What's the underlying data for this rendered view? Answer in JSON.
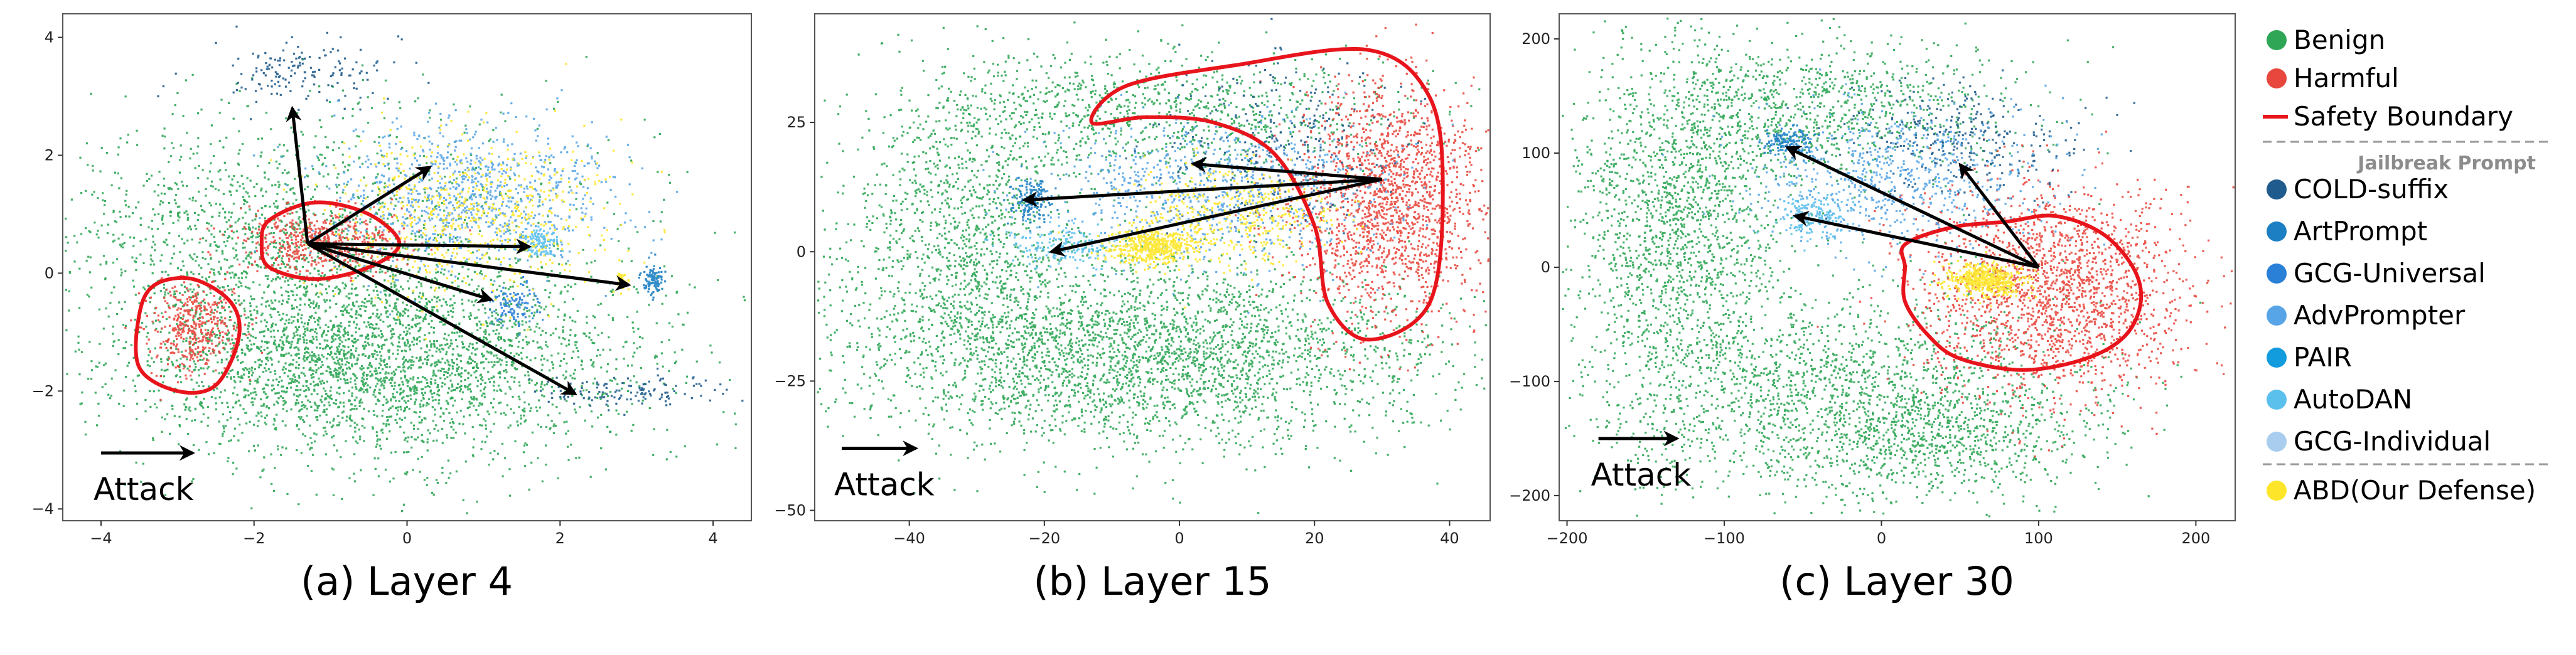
{
  "colors": {
    "benign": "#2ea655",
    "harmful": "#e8473d",
    "boundary": "#e8141c",
    "cold_suffix": "#1f5b8c",
    "artprompt": "#1c7fc4",
    "gcg_universal": "#2a7fd6",
    "advprompter": "#57a5e6",
    "pair": "#139cdd",
    "autodan": "#5bc0ec",
    "gcg_individual": "#a9cdee",
    "abd": "#fde629",
    "arrow": "#000000"
  },
  "legend": {
    "items": [
      {
        "label": "Benign",
        "color": "#2ea655",
        "kind": "dot"
      },
      {
        "label": "Harmful",
        "color": "#e8473d",
        "kind": "dot"
      },
      {
        "label": "Safety Boundary",
        "color": "#e8141c",
        "kind": "line"
      }
    ],
    "group_title": "Jailbreak Prompt",
    "jailbreak_items": [
      {
        "label": "COLD-suffix",
        "color": "#1f5b8c"
      },
      {
        "label": "ArtPrompt",
        "color": "#1c7fc4"
      },
      {
        "label": "GCG-Universal",
        "color": "#2a7fd6"
      },
      {
        "label": "AdvPrompter",
        "color": "#57a5e6"
      },
      {
        "label": "PAIR",
        "color": "#139cdd"
      },
      {
        "label": "AutoDAN",
        "color": "#5bc0ec"
      },
      {
        "label": "GCG-Individual",
        "color": "#a9cdee"
      }
    ],
    "defense_item": {
      "label": "ABD(Our Defense)",
      "color": "#fde629"
    }
  },
  "chart_data": [
    {
      "type": "scatter",
      "caption": "(a) Layer 4",
      "attack_label": "Attack",
      "xlim": [
        -4.5,
        4.5
      ],
      "ylim": [
        -4.2,
        4.4
      ],
      "xticks": [
        -4,
        -2,
        0,
        2,
        4
      ],
      "yticks": [
        -4,
        -2,
        0,
        2,
        4
      ],
      "clusters": [
        {
          "name": "Benign",
          "color": "#2ea655",
          "n": 2600,
          "cx": -0.5,
          "cy": -1.5,
          "sx": 1.6,
          "sy": 0.75
        },
        {
          "name": "Benign",
          "color": "#2ea655",
          "n": 1300,
          "cx": -1.8,
          "cy": 0.6,
          "sx": 1.4,
          "sy": 1.0
        },
        {
          "name": "Benign",
          "color": "#2ea655",
          "n": 700,
          "cx": 0.2,
          "cy": -0.9,
          "sx": 2.0,
          "sy": 1.6
        },
        {
          "name": "Harmful",
          "color": "#e8473d",
          "n": 420,
          "cx": -2.8,
          "cy": -0.9,
          "sx": 0.3,
          "sy": 0.38
        },
        {
          "name": "Harmful",
          "color": "#e8473d",
          "n": 560,
          "cx": -1.1,
          "cy": 0.55,
          "sx": 0.55,
          "sy": 0.28
        },
        {
          "name": "COLD-suffix",
          "color": "#1f5b8c",
          "n": 160,
          "cx": -1.4,
          "cy": 3.4,
          "sx": 0.6,
          "sy": 0.3
        },
        {
          "name": "COLD-suffix",
          "color": "#1f5b8c",
          "n": 130,
          "cx": 2.9,
          "cy": -2.0,
          "sx": 0.6,
          "sy": 0.12
        },
        {
          "name": "ArtPrompt",
          "color": "#1c7fc4",
          "n": 110,
          "cx": 3.2,
          "cy": -0.1,
          "sx": 0.07,
          "sy": 0.13
        },
        {
          "name": "GCG-Universal",
          "color": "#2a7fd6",
          "n": 110,
          "cx": 1.4,
          "cy": -0.5,
          "sx": 0.15,
          "sy": 0.18
        },
        {
          "name": "AdvPrompter",
          "color": "#57a5e6",
          "n": 900,
          "cx": 0.8,
          "cy": 1.3,
          "sx": 0.9,
          "sy": 0.6
        },
        {
          "name": "AutoDAN",
          "color": "#5bc0ec",
          "n": 130,
          "cx": 1.7,
          "cy": 0.55,
          "sx": 0.14,
          "sy": 0.12
        },
        {
          "name": "ABD(Our Defense)",
          "color": "#fde629",
          "n": 650,
          "cx": 0.8,
          "cy": 1.0,
          "sx": 0.9,
          "sy": 0.7
        },
        {
          "name": "ABD(Our Defense)",
          "color": "#fde629",
          "n": 40,
          "cx": 2.8,
          "cy": -0.1,
          "sx": 0.05,
          "sy": 0.1
        }
      ],
      "boundaries": [
        [
          [
            -3.3,
            -0.2
          ],
          [
            -2.8,
            -0.1
          ],
          [
            -2.3,
            -0.5
          ],
          [
            -2.2,
            -1.1
          ],
          [
            -2.5,
            -1.9
          ],
          [
            -3.0,
            -2.0
          ],
          [
            -3.5,
            -1.6
          ],
          [
            -3.5,
            -0.7
          ]
        ],
        [
          [
            -1.8,
            0.9
          ],
          [
            -1.2,
            1.2
          ],
          [
            -0.5,
            1.0
          ],
          [
            -0.1,
            0.5
          ],
          [
            -0.5,
            0.1
          ],
          [
            -1.2,
            -0.1
          ],
          [
            -1.8,
            0.1
          ],
          [
            -1.9,
            0.5
          ]
        ]
      ],
      "arrows": {
        "origin": [
          -1.3,
          0.5
        ],
        "targets": [
          [
            -1.5,
            2.8
          ],
          [
            0.3,
            1.8
          ],
          [
            1.6,
            0.45
          ],
          [
            2.9,
            -0.2
          ],
          [
            1.1,
            -0.45
          ],
          [
            2.2,
            -2.05
          ]
        ]
      },
      "attack_arrow": {
        "from": [
          -4.0,
          -3.05
        ],
        "to": [
          -2.8,
          -3.05
        ]
      }
    },
    {
      "type": "scatter",
      "caption": "(b) Layer 15",
      "attack_label": "Attack",
      "xlim": [
        -54,
        46
      ],
      "ylim": [
        -52,
        46
      ],
      "xticks": [
        -40,
        -20,
        0,
        20,
        40
      ],
      "yticks": [
        -50,
        -25,
        0,
        25
      ],
      "clusters": [
        {
          "name": "Benign",
          "color": "#2ea655",
          "n": 3000,
          "cx": -5,
          "cy": -20,
          "sx": 21,
          "sy": 9
        },
        {
          "name": "Benign",
          "color": "#2ea655",
          "n": 1200,
          "cx": -32,
          "cy": 2,
          "sx": 9,
          "sy": 15
        },
        {
          "name": "Benign",
          "color": "#2ea655",
          "n": 1000,
          "cx": -5,
          "cy": 27,
          "sx": 19,
          "sy": 6
        },
        {
          "name": "Harmful",
          "color": "#e8473d",
          "n": 1700,
          "cx": 31,
          "cy": 10,
          "sx": 7,
          "sy": 11
        },
        {
          "name": "COLD-suffix",
          "color": "#1f5b8c",
          "n": 300,
          "cx": 14,
          "cy": 22,
          "sx": 9,
          "sy": 8
        },
        {
          "name": "ArtPrompt",
          "color": "#1c7fc4",
          "n": 160,
          "cx": -22,
          "cy": 10,
          "sx": 1.5,
          "sy": 2
        },
        {
          "name": "AdvPrompter",
          "color": "#57a5e6",
          "n": 800,
          "cx": 5,
          "cy": 12,
          "sx": 13,
          "sy": 7
        },
        {
          "name": "AutoDAN",
          "color": "#5bc0ec",
          "n": 180,
          "cx": -17,
          "cy": 1,
          "sx": 4,
          "sy": 2
        },
        {
          "name": "ABD(Our Defense)",
          "color": "#fde629",
          "n": 500,
          "cx": -4,
          "cy": 1,
          "sx": 3,
          "sy": 1.6
        },
        {
          "name": "ABD(Our Defense)",
          "color": "#fde629",
          "n": 450,
          "cx": 8,
          "cy": 7,
          "sx": 8,
          "sy": 5
        }
      ],
      "boundaries": [
        [
          [
            -13,
            25
          ],
          [
            -8,
            32
          ],
          [
            8,
            36
          ],
          [
            28,
            39
          ],
          [
            37,
            30
          ],
          [
            39,
            12
          ],
          [
            37,
            -10
          ],
          [
            28,
            -17
          ],
          [
            22,
            -10
          ],
          [
            20,
            5
          ],
          [
            14,
            19
          ],
          [
            5,
            25
          ],
          [
            -5,
            26
          ]
        ]
      ],
      "arrows": {
        "origin": [
          30,
          14
        ],
        "targets": [
          [
            2,
            17
          ],
          [
            -23,
            10
          ],
          [
            -19,
            0
          ]
        ]
      },
      "attack_arrow": {
        "from": [
          -50,
          -38
        ],
        "to": [
          -39,
          -38
        ]
      }
    },
    {
      "type": "scatter",
      "caption": "(c) Layer 30",
      "attack_label": "Attack",
      "xlim": [
        -205,
        225
      ],
      "ylim": [
        -222,
        222
      ],
      "xticks": [
        -200,
        -100,
        0,
        100,
        200
      ],
      "yticks": [
        -200,
        -100,
        0,
        100,
        200
      ],
      "clusters": [
        {
          "name": "Benign",
          "color": "#2ea655",
          "n": 1700,
          "cx": -130,
          "cy": 40,
          "sx": 35,
          "sy": 80
        },
        {
          "name": "Benign",
          "color": "#2ea655",
          "n": 1700,
          "cx": -30,
          "cy": -110,
          "sx": 75,
          "sy": 45
        },
        {
          "name": "Benign",
          "color": "#2ea655",
          "n": 900,
          "cx": -40,
          "cy": 140,
          "sx": 60,
          "sy": 30
        },
        {
          "name": "Benign",
          "color": "#2ea655",
          "n": 600,
          "cx": 40,
          "cy": -150,
          "sx": 50,
          "sy": 25
        },
        {
          "name": "Harmful",
          "color": "#e8473d",
          "n": 1900,
          "cx": 110,
          "cy": -20,
          "sx": 42,
          "sy": 45
        },
        {
          "name": "COLD-suffix",
          "color": "#1f5b8c",
          "n": 300,
          "cx": 50,
          "cy": 110,
          "sx": 35,
          "sy": 25
        },
        {
          "name": "ArtPrompt",
          "color": "#1c7fc4",
          "n": 160,
          "cx": -60,
          "cy": 110,
          "sx": 8,
          "sy": 6
        },
        {
          "name": "AdvPrompter",
          "color": "#57a5e6",
          "n": 700,
          "cx": 10,
          "cy": 80,
          "sx": 45,
          "sy": 30
        },
        {
          "name": "AutoDAN",
          "color": "#5bc0ec",
          "n": 180,
          "cx": -45,
          "cy": 45,
          "sx": 10,
          "sy": 10
        },
        {
          "name": "ABD(Our Defense)",
          "color": "#fde629",
          "n": 550,
          "cx": 65,
          "cy": -10,
          "sx": 12,
          "sy": 7
        }
      ],
      "boundaries": [
        [
          [
            15,
            20
          ],
          [
            45,
            35
          ],
          [
            80,
            40
          ],
          [
            110,
            45
          ],
          [
            140,
            30
          ],
          [
            160,
            0
          ],
          [
            165,
            -30
          ],
          [
            155,
            -60
          ],
          [
            130,
            -80
          ],
          [
            90,
            -90
          ],
          [
            50,
            -80
          ],
          [
            30,
            -60
          ],
          [
            15,
            -30
          ],
          [
            15,
            0
          ]
        ]
      ],
      "arrows": {
        "origin": [
          100,
          0
        ],
        "targets": [
          [
            -60,
            105
          ],
          [
            -55,
            45
          ],
          [
            50,
            90
          ]
        ]
      },
      "attack_arrow": {
        "from": [
          -180,
          -150
        ],
        "to": [
          -130,
          -150
        ]
      }
    }
  ]
}
